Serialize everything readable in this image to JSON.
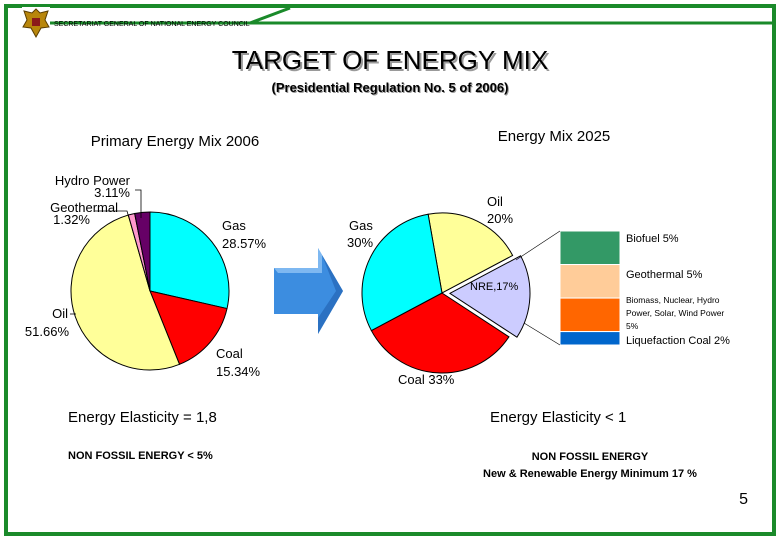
{
  "header": {
    "org": "SECRETARIAT GENERAL OF NATIONAL ENERGY COUNCIL"
  },
  "title": "TARGET OF ENERGY MIX",
  "subtitle": "(Presidential Regulation No. 5 of 2006)",
  "colors": {
    "frame_green": "#1a8a2a",
    "cyan": "#00ffff",
    "red": "#ff0000",
    "yellow": "#ffff99",
    "pink": "#ff99cc",
    "purple": "#660066",
    "lavender": "#ccccff",
    "biofuel": "#339966",
    "geothermal": "#ffcc99",
    "biomass": "#ff6600",
    "liquefaction": "#0066cc",
    "arrow_blue": "#3c8de0"
  },
  "chart_data": [
    {
      "type": "pie",
      "title": "Primary Energy Mix 2006",
      "slices": [
        {
          "label": "Gas",
          "value_text": "28.57%",
          "value": 28.57,
          "color": "#00ffff"
        },
        {
          "label": "Coal",
          "value_text": "15.34%",
          "value": 15.34,
          "color": "#ff0000"
        },
        {
          "label": "Oil",
          "value_text": "51.66%",
          "value": 51.66,
          "color": "#ffff99"
        },
        {
          "label": "Geothermal",
          "value_text": "1.32%",
          "value": 1.32,
          "color": "#ff99cc"
        },
        {
          "label": "Hydro Power",
          "value_text": "3.11%",
          "value": 3.11,
          "color": "#660066"
        }
      ]
    },
    {
      "type": "pie",
      "title": "Energy Mix 2025",
      "slices": [
        {
          "label": "Oil",
          "value_text": "20%",
          "value": 20,
          "color": "#ffff99"
        },
        {
          "label": "NRE",
          "value_text": "17%",
          "value": 17,
          "color": "#ccccff"
        },
        {
          "label": "Coal",
          "value_text": "33%",
          "value": 33,
          "color": "#ff0000"
        },
        {
          "label": "Gas",
          "value_text": "30%",
          "value": 30,
          "color": "#00ffff"
        }
      ],
      "nre_breakdown": [
        {
          "label": "Biofuel 5%",
          "value": 5,
          "color": "#339966"
        },
        {
          "label": "Geothermal 5%",
          "value": 5,
          "color": "#ffcc99"
        },
        {
          "label": "Biomass, Nuclear, Hydro Power, Solar, Wind Power 5%",
          "value": 5,
          "color": "#ff6600"
        },
        {
          "label": "Liquefaction Coal 2%",
          "value": 2,
          "color": "#0066cc"
        }
      ]
    }
  ],
  "labels2006": {
    "title": "Primary Energy Mix 2006",
    "hydro_name": "Hydro Power",
    "hydro_val": "3.11%",
    "geo_name": "Geothermal",
    "geo_val": "1.32%",
    "gas_name": "Gas",
    "gas_val": "28.57%",
    "oil_name": "Oil",
    "oil_val": "51.66%",
    "coal_name": "Coal",
    "coal_val": "15.34%"
  },
  "labels2025": {
    "title": "Energy Mix 2025",
    "oil_name": "Oil",
    "oil_val": "20%",
    "gas_name": "Gas",
    "gas_val": "30%",
    "nre": "NRE,17%",
    "coal": "Coal 33%",
    "biofuel": "Biofuel 5%",
    "geothermal": "Geothermal 5%",
    "biomass_line1": "Biomass, Nuclear, Hydro",
    "biomass_line2": "Power, Solar, Wind Power",
    "biomass_line3": "5%",
    "liquefaction": "Liquefaction Coal 2%"
  },
  "left_notes": {
    "elasticity": "Energy Elasticity = 1,8",
    "non_fossil": "NON FOSSIL ENERGY  < 5%"
  },
  "right_notes": {
    "elasticity": "Energy Elasticity < 1",
    "non_fossil": "NON FOSSIL ENERGY",
    "renewable": "New & Renewable Energy Minimum 17 %"
  },
  "page_number": "5"
}
